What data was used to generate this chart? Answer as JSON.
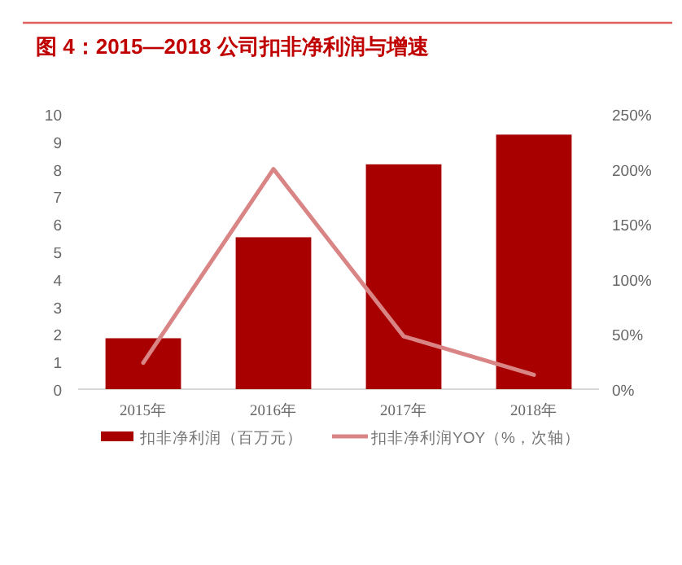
{
  "chart_data": {
    "type": "bar",
    "title": "图 4：2015—2018 公司扣非净利润与增速",
    "categories": [
      "2015年",
      "2016年",
      "2017年",
      "2018年"
    ],
    "series": [
      {
        "name": "扣非净利润（百万元）",
        "color": "#a80000",
        "values": [
          1.85,
          5.52,
          8.17,
          9.25
        ]
      },
      {
        "name": "扣非净利润YOY（%，次轴）",
        "type": "line",
        "axis": "y2",
        "color": "#d98585",
        "values": [
          24,
          200,
          48,
          13
        ]
      }
    ],
    "ylim": [
      0,
      10
    ],
    "yticks": [
      0,
      1,
      2,
      3,
      4,
      5,
      6,
      7,
      8,
      9,
      10
    ],
    "y2lim": [
      0,
      250
    ],
    "y2ticks": [
      {
        "value": 0,
        "label": "0%"
      },
      {
        "value": 50,
        "label": "50%"
      },
      {
        "value": 100,
        "label": "100%"
      },
      {
        "value": 150,
        "label": "150%"
      },
      {
        "value": 200,
        "label": "200%"
      },
      {
        "value": 250,
        "label": "250%"
      }
    ],
    "legend": "bottom",
    "grid": false
  }
}
